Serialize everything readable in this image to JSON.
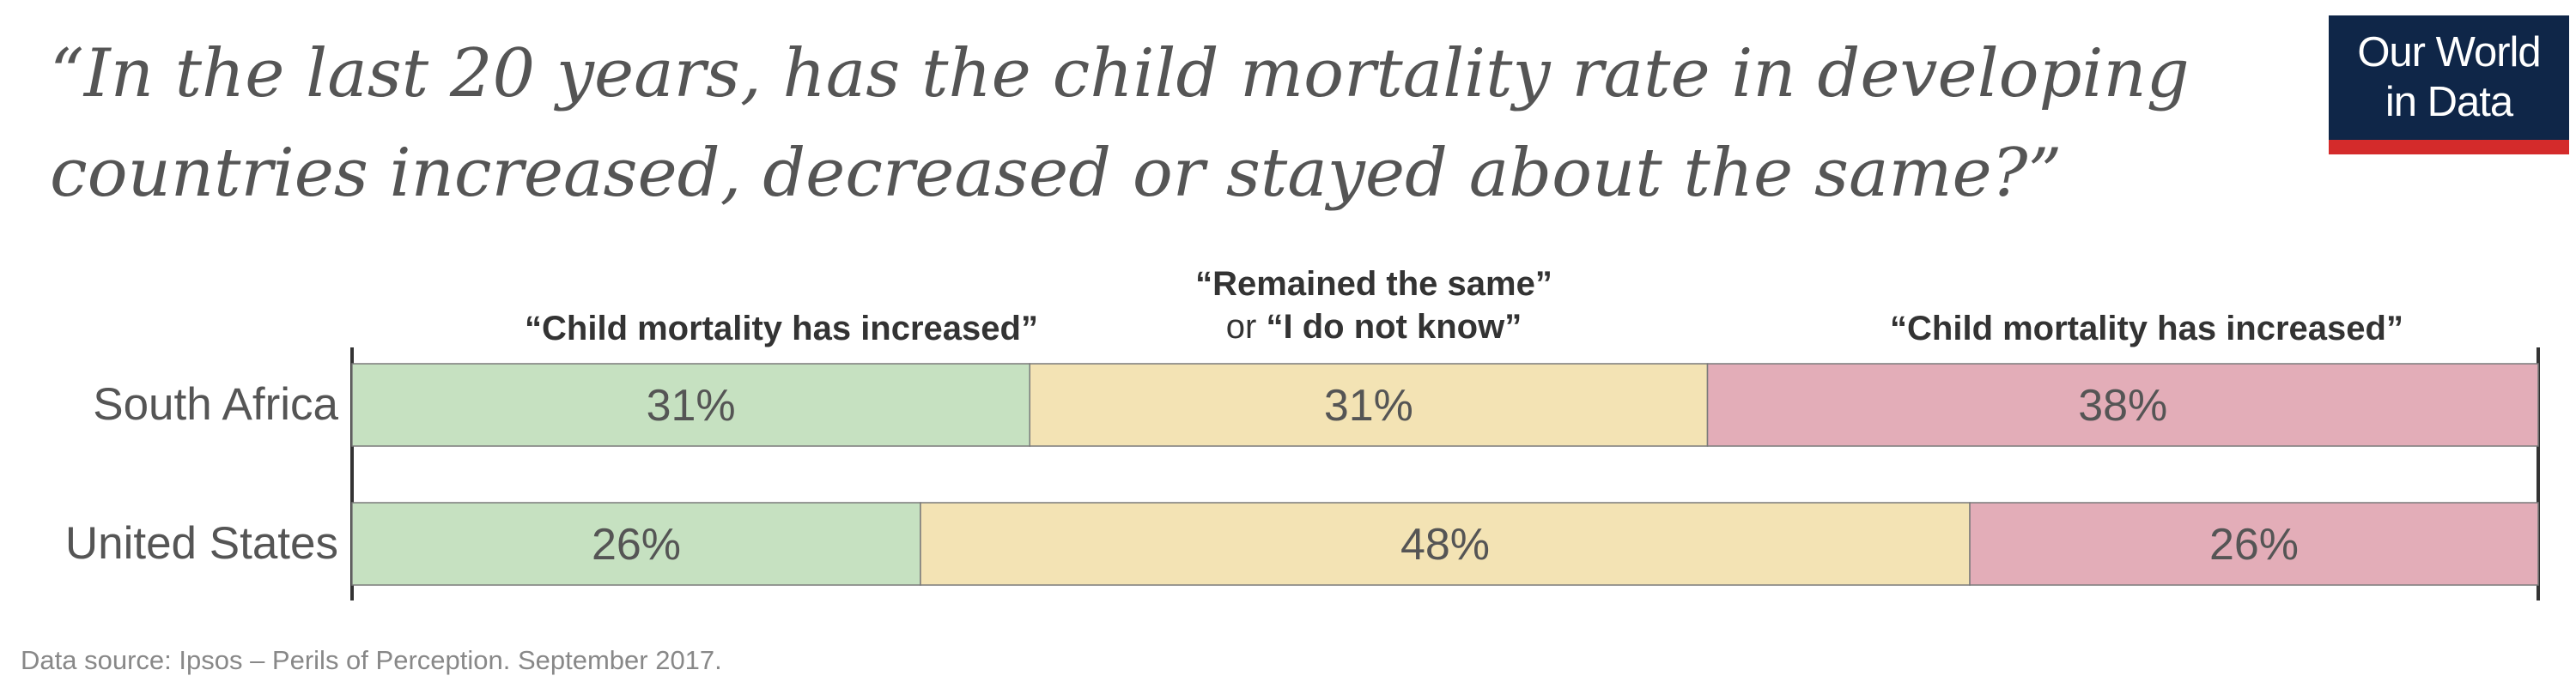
{
  "title": "“In the last 20 years, has the child mortality rate in developing countries increased, decreased or stayed about the same?”",
  "logo": {
    "line1": "Our World",
    "line2": "in Data"
  },
  "footer": "Data source: Ipsos – Perils of Perception. September 2017.",
  "colors": {
    "increased_left": "#c6e1c1",
    "same": "#f3e3b4",
    "increased_right": "#e3adb8",
    "bar_border": "#7a7a7a",
    "text": "#555555",
    "logo_bg": "#0f2648",
    "logo_accent": "#d42b2b"
  },
  "chart_data": {
    "type": "bar",
    "orientation": "horizontal",
    "stacked": true,
    "percent": true,
    "categories": [
      "South Africa",
      "United States"
    ],
    "series": [
      {
        "name": "“Child mortality has increased”",
        "values": [
          31,
          26
        ]
      },
      {
        "name_line1": "“Remained the same”",
        "name_or": "or",
        "name_line2": "“I do not know”",
        "values": [
          31,
          48
        ]
      },
      {
        "name": "“Child mortality has increased”",
        "values": [
          38,
          26
        ]
      }
    ],
    "value_labels": [
      [
        "31%",
        "31%",
        "38%"
      ],
      [
        "26%",
        "48%",
        "26%"
      ]
    ],
    "xlim": [
      0,
      100
    ]
  }
}
